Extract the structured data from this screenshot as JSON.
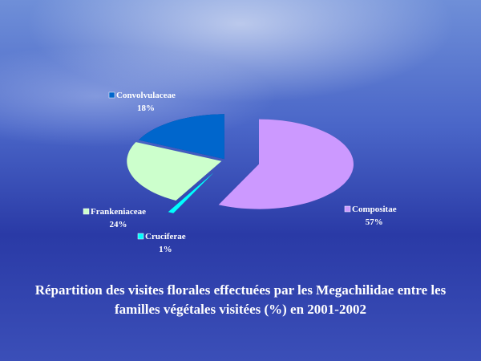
{
  "chart_data": {
    "type": "pie3d",
    "title": "Répartition  des visites florales effectuées par les Megachilidae entre les familles végétales visitées (%) en 2001-2002",
    "categories": [
      "Compositae",
      "Cruciferae",
      "Frankeniaceae",
      "Convolvulaceae"
    ],
    "values": [
      57,
      1,
      24,
      18
    ],
    "value_labels": [
      "57%",
      "1%",
      "24%",
      "18%"
    ],
    "colors": [
      "#cc99ff",
      "#00ffff",
      "#ccffcc",
      "#0066cc"
    ]
  }
}
